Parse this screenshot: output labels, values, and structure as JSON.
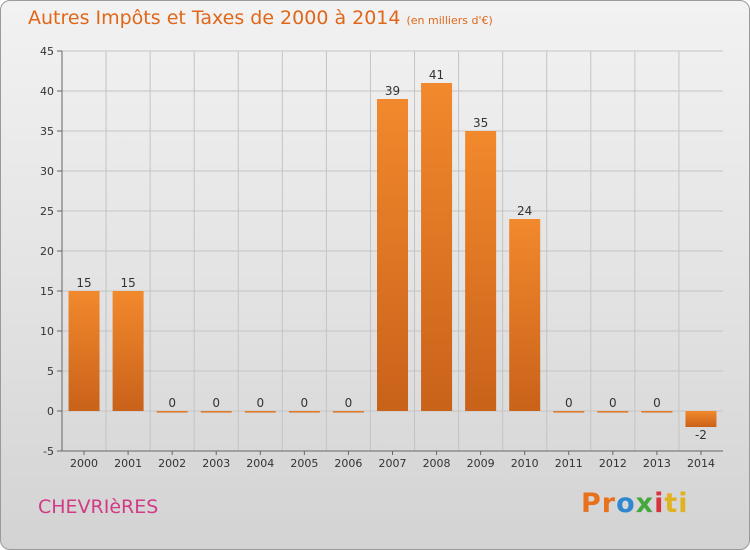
{
  "chart_data": {
    "type": "bar",
    "title": "Autres Impôts et Taxes de 2000 à 2014",
    "subtitle": "(en milliers d'€)",
    "categories": [
      "2000",
      "2001",
      "2002",
      "2003",
      "2004",
      "2005",
      "2006",
      "2007",
      "2008",
      "2009",
      "2010",
      "2011",
      "2012",
      "2013",
      "2014"
    ],
    "values": [
      15,
      15,
      0,
      0,
      0,
      0,
      0,
      39,
      41,
      35,
      24,
      0,
      0,
      0,
      -2
    ],
    "ylim": [
      -5,
      45
    ],
    "yticks": [
      -5,
      0,
      5,
      10,
      15,
      20,
      25,
      30,
      35,
      40,
      45
    ],
    "grid": true,
    "bar_color": "#f2892d",
    "bar_color_dark": "#c9621a"
  },
  "commune": "CHEVRIèRES",
  "logo": {
    "p1": "Pr",
    "p2": "o",
    "p3": "x",
    "p4": "i",
    "p5": "ti"
  }
}
